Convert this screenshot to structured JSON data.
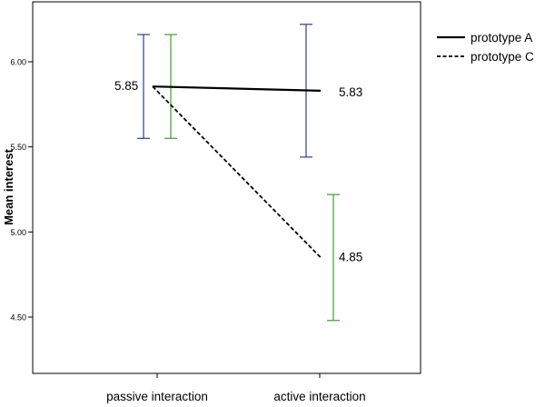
{
  "chart_data": {
    "type": "line",
    "title": "",
    "xlabel": "",
    "ylabel": "Mean interest",
    "categories": [
      "passive interaction",
      "active interaction"
    ],
    "ylim": [
      4.15,
      6.4
    ],
    "yticks": [
      {
        "value": 4.5,
        "label": "4.50"
      },
      {
        "value": 5.0,
        "label": "5.00"
      },
      {
        "value": 5.5,
        "label": "5.50"
      },
      {
        "value": 6.0,
        "label": "6.00"
      }
    ],
    "grid": false,
    "legend_position": "top-right",
    "series": [
      {
        "name": "prototype A",
        "line_style": "solid",
        "errorbar_color": "#2e3d92",
        "values": [
          5.855,
          5.83
        ],
        "value_labels": [
          "5.85",
          "5.83"
        ],
        "error_low": [
          5.55,
          5.44
        ],
        "error_high": [
          6.16,
          6.22
        ]
      },
      {
        "name": "prototype C",
        "line_style": "dashed",
        "errorbar_color": "#3ca02a",
        "values": [
          5.855,
          4.85
        ],
        "value_labels": [
          "",
          "4.85"
        ],
        "error_low": [
          5.55,
          4.48
        ],
        "error_high": [
          6.16,
          5.22
        ]
      }
    ]
  }
}
